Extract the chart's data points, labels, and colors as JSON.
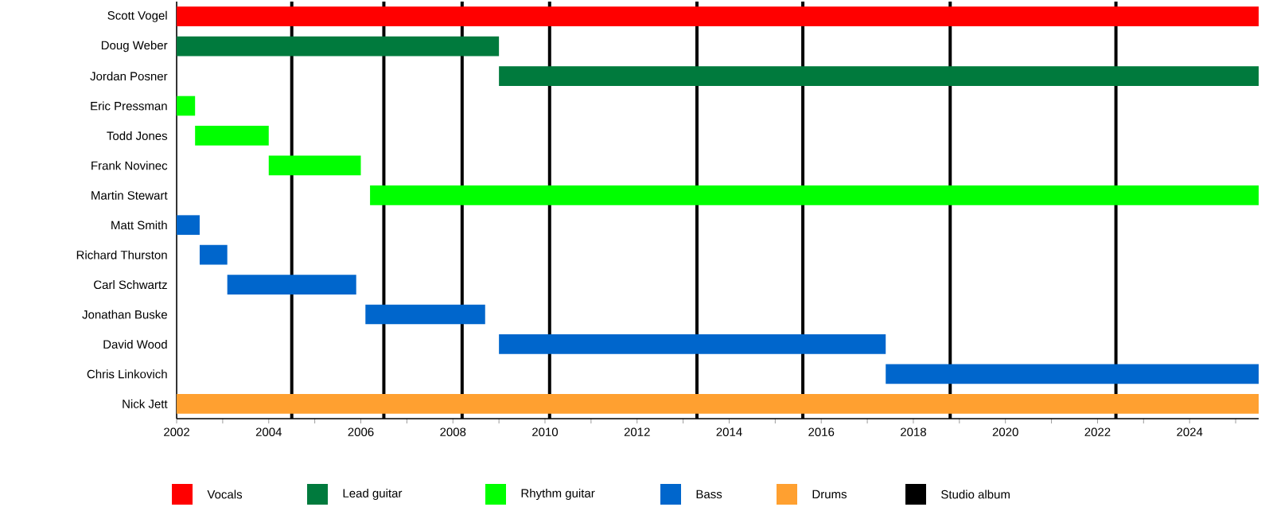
{
  "chart_data": {
    "type": "bar",
    "orientation": "horizontal",
    "categories": [
      "Scott Vogel",
      "Doug Weber",
      "Jordan Posner",
      "Eric Pressman",
      "Todd Jones",
      "Frank Novinec",
      "Martin Stewart",
      "Matt Smith",
      "Richard Thurston",
      "Carl Schwartz",
      "Jonathan Buske",
      "David Wood",
      "Chris Linkovich",
      "Nick Jett"
    ],
    "series": [
      {
        "name": "Vocals",
        "color": "#ff0000",
        "base": [
          2002,
          null,
          null,
          null,
          null,
          null,
          null,
          null,
          null,
          null,
          null,
          null,
          null,
          null
        ],
        "values": [
          23.5,
          null,
          null,
          null,
          null,
          null,
          null,
          null,
          null,
          null,
          null,
          null,
          null,
          null
        ]
      },
      {
        "name": "Lead guitar",
        "color": "#007a3d",
        "base": [
          null,
          2002,
          2009.0,
          null,
          null,
          null,
          null,
          null,
          null,
          null,
          null,
          null,
          null,
          null
        ],
        "values": [
          null,
          7.0,
          16.5,
          null,
          null,
          null,
          null,
          null,
          null,
          null,
          null,
          null,
          null,
          null
        ]
      },
      {
        "name": "Rhythm guitar",
        "color": "#00ff00",
        "base": [
          null,
          null,
          null,
          2002,
          2002.4,
          2004.0,
          2006.2,
          null,
          null,
          null,
          null,
          null,
          null,
          null
        ],
        "values": [
          null,
          null,
          null,
          0.4,
          1.6,
          2.0,
          19.3,
          null,
          null,
          null,
          null,
          null,
          null,
          null
        ]
      },
      {
        "name": "Bass",
        "color": "#0066cc",
        "base": [
          null,
          null,
          null,
          null,
          null,
          null,
          null,
          2002,
          2002.5,
          2003.1,
          2006.1,
          2009.0,
          2017.4,
          null
        ],
        "values": [
          null,
          null,
          null,
          null,
          null,
          null,
          null,
          0.5,
          0.6,
          2.8,
          2.6,
          8.4,
          8.1,
          null
        ]
      },
      {
        "name": "Drums",
        "color": "#ffa030",
        "base": [
          null,
          null,
          null,
          null,
          null,
          null,
          null,
          null,
          null,
          null,
          null,
          null,
          null,
          2002
        ],
        "values": [
          null,
          null,
          null,
          null,
          null,
          null,
          null,
          null,
          null,
          null,
          null,
          null,
          null,
          23.5
        ]
      }
    ],
    "ref_lines": [
      {
        "axis": "x",
        "value": 2004.5,
        "label": "Studio album",
        "color": "#000000"
      },
      {
        "axis": "x",
        "value": 2006.5,
        "color": "#000000"
      },
      {
        "axis": "x",
        "value": 2008.2,
        "color": "#000000"
      },
      {
        "axis": "x",
        "value": 2010.1,
        "color": "#000000"
      },
      {
        "axis": "x",
        "value": 2013.3,
        "color": "#000000"
      },
      {
        "axis": "x",
        "value": 2015.6,
        "color": "#000000"
      },
      {
        "axis": "x",
        "value": 2018.8,
        "color": "#000000"
      },
      {
        "axis": "x",
        "value": 2022.4,
        "color": "#000000"
      }
    ],
    "xlim": [
      2002,
      2025.5
    ],
    "xticks": [
      2002,
      {
        "value": 2003,
        "label": null
      },
      2004,
      {
        "value": 2005,
        "label": null
      },
      2006,
      {
        "value": 2007,
        "label": null
      },
      2008,
      {
        "value": 2009,
        "label": null
      },
      2010,
      {
        "value": 2011,
        "label": null
      },
      2012,
      {
        "value": 2013,
        "label": null
      },
      2014,
      {
        "value": 2015,
        "label": null
      },
      2016,
      {
        "value": 2017,
        "label": null
      },
      2018,
      {
        "value": 2019,
        "label": null
      },
      2020,
      {
        "value": 2021,
        "label": null
      },
      2022,
      {
        "value": 2023,
        "label": null
      },
      2024,
      {
        "value": 2025,
        "label": null
      }
    ],
    "grid": false,
    "legend": "bottom"
  }
}
